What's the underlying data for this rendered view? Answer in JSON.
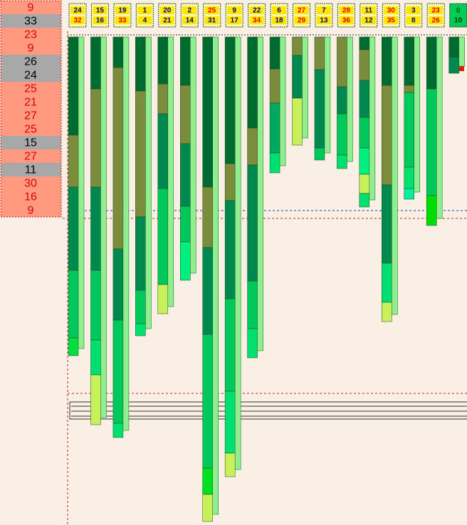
{
  "left_list": [
    {
      "value": 9,
      "highlight": true
    },
    {
      "value": 33,
      "highlight": false
    },
    {
      "value": 23,
      "highlight": true
    },
    {
      "value": 9,
      "highlight": true
    },
    {
      "value": 26,
      "highlight": false
    },
    {
      "value": 24,
      "highlight": false
    },
    {
      "value": 25,
      "highlight": true
    },
    {
      "value": 21,
      "highlight": true
    },
    {
      "value": 27,
      "highlight": true
    },
    {
      "value": 25,
      "highlight": true
    },
    {
      "value": 15,
      "highlight": false
    },
    {
      "value": 27,
      "highlight": true
    },
    {
      "value": 11,
      "highlight": false
    },
    {
      "value": 30,
      "highlight": true
    },
    {
      "value": 16,
      "highlight": true
    },
    {
      "value": 9,
      "highlight": true
    }
  ],
  "columns": [
    {
      "top": 24,
      "top_color": "#000080",
      "bottom": 32,
      "bottom_color": "#e00000",
      "box_color": "#fff6b0",
      "segments": [
        {
          "length": 138,
          "color": "#006b30"
        },
        {
          "length": 73,
          "color": "#7b8d3c"
        },
        {
          "length": 117,
          "color": "#00894f"
        },
        {
          "length": 95,
          "color": "#00c85a"
        },
        {
          "length": 25,
          "color": "#00e040"
        }
      ]
    },
    {
      "top": 15,
      "top_color": "#000080",
      "bottom": 16,
      "bottom_color": "#000080",
      "box_color": "#fff6b0",
      "segments": [
        {
          "length": 73,
          "color": "#006b30"
        },
        {
          "length": 138,
          "color": "#7b8d3c"
        },
        {
          "length": 117,
          "color": "#00894f"
        },
        {
          "length": 98,
          "color": "#00c85a"
        },
        {
          "length": 49,
          "color": "#00e070"
        },
        {
          "length": 70,
          "color": "#c8f05a"
        }
      ]
    },
    {
      "top": 19,
      "top_color": "#000080",
      "bottom": 33,
      "bottom_color": "#e00000",
      "box_color": "#fff6b0",
      "segments": [
        {
          "length": 43,
          "color": "#006b30"
        },
        {
          "length": 255,
          "color": "#7b8d3c"
        },
        {
          "length": 100,
          "color": "#00894f"
        },
        {
          "length": 145,
          "color": "#00c85a"
        },
        {
          "length": 20,
          "color": "#00e070"
        }
      ]
    },
    {
      "top": 1,
      "top_color": "#000080",
      "bottom": 4,
      "bottom_color": "#000080",
      "box_color": "#fff6b0",
      "segments": [
        {
          "length": 76,
          "color": "#006b30"
        },
        {
          "length": 177,
          "color": "#7b8d3c"
        },
        {
          "length": 103,
          "color": "#00894f"
        },
        {
          "length": 47,
          "color": "#00c85a"
        },
        {
          "length": 17,
          "color": "#00e070"
        }
      ]
    },
    {
      "top": 20,
      "top_color": "#000080",
      "bottom": 21,
      "bottom_color": "#000080",
      "box_color": "#fff6b0",
      "segments": [
        {
          "length": 66,
          "color": "#006b30"
        },
        {
          "length": 42,
          "color": "#7b8d3c"
        },
        {
          "length": 105,
          "color": "#00894f"
        },
        {
          "length": 135,
          "color": "#00c85a"
        },
        {
          "length": 41,
          "color": "#c8f05a"
        }
      ]
    },
    {
      "top": 2,
      "top_color": "#000080",
      "bottom": 14,
      "bottom_color": "#000080",
      "box_color": "#fff6b0",
      "segments": [
        {
          "length": 68,
          "color": "#006b30"
        },
        {
          "length": 82,
          "color": "#7b8d3c"
        },
        {
          "length": 88,
          "color": "#00894f"
        },
        {
          "length": 50,
          "color": "#00c85a"
        },
        {
          "length": 54,
          "color": "#00f080"
        }
      ]
    },
    {
      "top": 25,
      "top_color": "#e00000",
      "bottom": 31,
      "bottom_color": "#000080",
      "box_color": "#fff6b0",
      "segments": [
        {
          "length": 211,
          "color": "#006b30"
        },
        {
          "length": 85,
          "color": "#7b8d3c"
        },
        {
          "length": 122,
          "color": "#00894f"
        },
        {
          "length": 188,
          "color": "#00c85a"
        },
        {
          "length": 37,
          "color": "#00e020"
        },
        {
          "length": 38,
          "color": "#c8f05a"
        }
      ]
    },
    {
      "top": 9,
      "top_color": "#000080",
      "bottom": 17,
      "bottom_color": "#000080",
      "box_color": "#fff6b0",
      "segments": [
        {
          "length": 178,
          "color": "#006b30"
        },
        {
          "length": 52,
          "color": "#7b8d3c"
        },
        {
          "length": 138,
          "color": "#00894f"
        },
        {
          "length": 130,
          "color": "#00c85a"
        },
        {
          "length": 87,
          "color": "#00e070"
        },
        {
          "length": 33,
          "color": "#c8f05a"
        }
      ]
    },
    {
      "top": 22,
      "top_color": "#000080",
      "bottom": 34,
      "bottom_color": "#e00000",
      "box_color": "#fff6b0",
      "segments": [
        {
          "length": 128,
          "color": "#006b30"
        },
        {
          "length": 52,
          "color": "#7b8d3c"
        },
        {
          "length": 163,
          "color": "#00894f"
        },
        {
          "length": 67,
          "color": "#00c85a"
        },
        {
          "length": 41,
          "color": "#00e070"
        }
      ]
    },
    {
      "top": 6,
      "top_color": "#000080",
      "bottom": 18,
      "bottom_color": "#000080",
      "box_color": "#fff6b0",
      "segments": [
        {
          "length": 45,
          "color": "#006b30"
        },
        {
          "length": 48,
          "color": "#7b8d3c"
        },
        {
          "length": 70,
          "color": "#00a860"
        },
        {
          "length": 28,
          "color": "#00e070"
        }
      ]
    },
    {
      "top": 27,
      "top_color": "#e00000",
      "bottom": 29,
      "bottom_color": "#e00000",
      "box_color": "#fff6b0",
      "segments": [
        {
          "length": 26,
          "color": "#7b8d3c"
        },
        {
          "length": 60,
          "color": "#00894f"
        },
        {
          "length": 66,
          "color": "#c8f05a"
        }
      ]
    },
    {
      "top": 7,
      "top_color": "#000080",
      "bottom": 13,
      "bottom_color": "#000080",
      "box_color": "#fff6b0",
      "segments": [
        {
          "length": 46,
          "color": "#7b8d3c"
        },
        {
          "length": 110,
          "color": "#00894f"
        },
        {
          "length": 17,
          "color": "#00c85a"
        }
      ]
    },
    {
      "top": 28,
      "top_color": "#e00000",
      "bottom": 36,
      "bottom_color": "#e00000",
      "box_color": "#fff6b0",
      "segments": [
        {
          "length": 70,
          "color": "#7b8d3c"
        },
        {
          "length": 38,
          "color": "#00894f"
        },
        {
          "length": 58,
          "color": "#00c85a"
        },
        {
          "length": 19,
          "color": "#00e070"
        }
      ]
    },
    {
      "top": 11,
      "top_color": "#000080",
      "bottom": 12,
      "bottom_color": "#000080",
      "box_color": "#fff6b0",
      "segments": [
        {
          "length": 18,
          "color": "#006b30"
        },
        {
          "length": 43,
          "color": "#7b8d3c"
        },
        {
          "length": 52,
          "color": "#00894f"
        },
        {
          "length": 43,
          "color": "#00c85a"
        },
        {
          "length": 37,
          "color": "#00f080"
        },
        {
          "length": 27,
          "color": "#c8f05a"
        },
        {
          "length": 19,
          "color": "#00e070"
        }
      ]
    },
    {
      "top": 30,
      "top_color": "#e00000",
      "bottom": 35,
      "bottom_color": "#e00000",
      "box_color": "#fff6b0",
      "segments": [
        {
          "length": 68,
          "color": "#006b30"
        },
        {
          "length": 140,
          "color": "#7b8d3c"
        },
        {
          "length": 110,
          "color": "#00894f"
        },
        {
          "length": 55,
          "color": "#00e070"
        },
        {
          "length": 27,
          "color": "#c8f05a"
        }
      ]
    },
    {
      "top": 3,
      "top_color": "#000080",
      "bottom": 8,
      "bottom_color": "#000080",
      "box_color": "#fff6b0",
      "segments": [
        {
          "length": 68,
          "color": "#006b30"
        },
        {
          "length": 10,
          "color": "#7b8d3c"
        },
        {
          "length": 105,
          "color": "#00c85a"
        },
        {
          "length": 30,
          "color": "#00e070"
        },
        {
          "length": 15,
          "color": "#00f0a0"
        }
      ]
    },
    {
      "top": 23,
      "top_color": "#e00000",
      "bottom": 26,
      "bottom_color": "#e00000",
      "box_color": "#fff6b0",
      "segments": [
        {
          "length": 73,
          "color": "#006b30"
        },
        {
          "length": 150,
          "color": "#00c85a"
        },
        {
          "length": 42,
          "color": "#00dd00"
        }
      ]
    },
    {
      "top": 0,
      "top_color": "#005000",
      "bottom": 10,
      "bottom_color": "#003000",
      "box_color": "#00cc55",
      "segments": [
        {
          "length": 28,
          "color": "#006b30"
        },
        {
          "length": 23,
          "color": "#00894f"
        }
      ]
    }
  ]
}
